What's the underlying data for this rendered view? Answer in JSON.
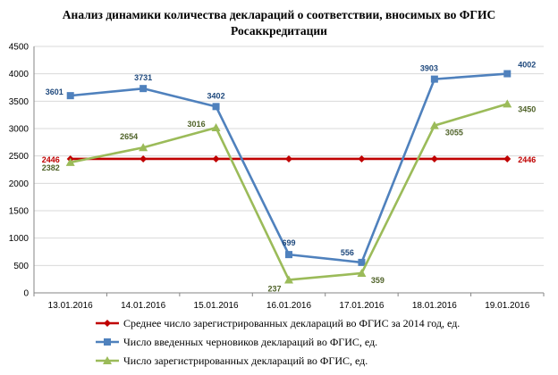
{
  "chart_data": {
    "type": "line",
    "title": "Анализ динамики количества деклараций о соответствии, вносимых во ФГИС Росаккредитации",
    "categories": [
      "13.01.2016",
      "14.01.2016",
      "15.01.2016",
      "16.01.2016",
      "17.01.2016",
      "18.01.2016",
      "19.01.2016"
    ],
    "ylim": [
      0,
      4500
    ],
    "yticks": [
      0,
      500,
      1000,
      1500,
      2000,
      2500,
      3000,
      3500,
      4000,
      4500
    ],
    "grid": true,
    "legend_position": "bottom",
    "series": [
      {
        "name": "Среднее число зарегистрированных деклараций во  ФГИС за 2014 год, ед.",
        "color": "#C00000",
        "marker": "diamond",
        "values": [
          2446,
          2446,
          2446,
          2446,
          2446,
          2446,
          2446
        ],
        "labels": [
          "2446",
          null,
          null,
          null,
          null,
          null,
          "2446"
        ]
      },
      {
        "name": "Число введенных черновиков деклараций во ФГИС, ед.",
        "color": "#4F81BD",
        "marker": "square",
        "values": [
          3601,
          3731,
          3402,
          699,
          556,
          3903,
          4002
        ],
        "labels": [
          "3601",
          "3731",
          "3402",
          "699",
          "556",
          "3903",
          "4002"
        ]
      },
      {
        "name": "Число зарегистрированных деклараций во ФГИС, ед.",
        "color": "#9BBB59",
        "marker": "triangle",
        "values": [
          2382,
          2654,
          3016,
          237,
          359,
          3055,
          3450
        ],
        "labels": [
          "2382",
          "2654",
          "3016",
          "237",
          "359",
          "3055",
          "3450"
        ]
      }
    ]
  },
  "label_colors": {
    "blue": "#1F497D",
    "green": "#4F6228",
    "red": "#C00000"
  }
}
